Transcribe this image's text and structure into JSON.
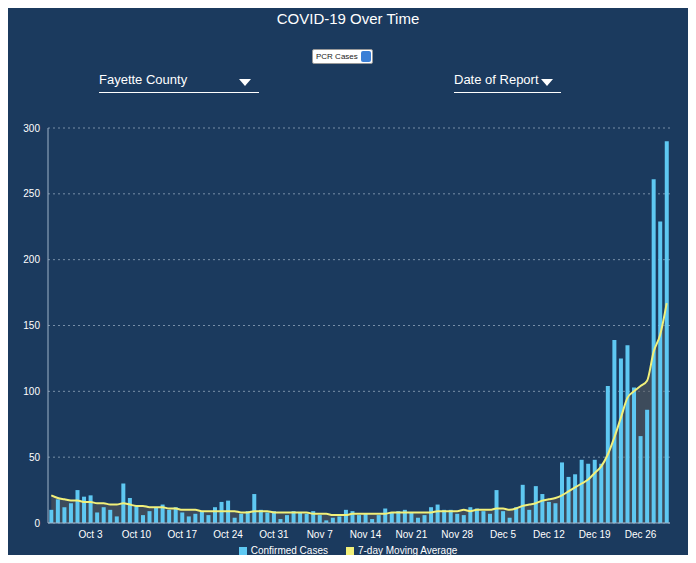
{
  "controls": {
    "metric": "PCR Cases",
    "location": "Fayette County",
    "date_type": "Date of Report"
  },
  "chart_data": {
    "type": "bar",
    "title": "COVID-19 Over Time",
    "categories": [
      null,
      null,
      null,
      null,
      null,
      null,
      "Oct 3",
      null,
      null,
      null,
      null,
      null,
      null,
      "Oct 10",
      null,
      null,
      null,
      null,
      null,
      null,
      "Oct 17",
      null,
      null,
      null,
      null,
      null,
      null,
      "Oct 24",
      null,
      null,
      null,
      null,
      null,
      null,
      "Oct 31",
      null,
      null,
      null,
      null,
      null,
      null,
      "Nov 7",
      null,
      null,
      null,
      null,
      null,
      null,
      "Nov 14",
      null,
      null,
      null,
      null,
      null,
      null,
      "Nov 21",
      null,
      null,
      null,
      null,
      null,
      null,
      "Nov 28",
      null,
      null,
      null,
      null,
      null,
      null,
      "Dec 5",
      null,
      null,
      null,
      null,
      null,
      null,
      "Dec 12",
      null,
      null,
      null,
      null,
      null,
      null,
      "Dec 19",
      null,
      null,
      null,
      null,
      null,
      null,
      "Dec 26",
      null,
      null,
      null,
      null
    ],
    "series": [
      {
        "name": "Confirmed Cases",
        "type": "bar",
        "color": "#5ec8f2",
        "values": [
          10,
          18,
          12,
          15,
          25,
          20,
          21,
          8,
          12,
          10,
          5,
          30,
          19,
          13,
          6,
          9,
          12,
          14,
          10,
          12,
          8,
          5,
          7,
          9,
          6,
          12,
          16,
          17,
          4,
          7,
          9,
          22,
          10,
          8,
          9,
          3,
          6,
          9,
          8,
          7,
          9,
          6,
          2,
          4,
          5,
          10,
          9,
          6,
          7,
          3,
          6,
          11,
          8,
          9,
          10,
          8,
          4,
          6,
          12,
          14,
          10,
          10,
          7,
          6,
          12,
          11,
          9,
          7,
          25,
          9,
          4,
          12,
          29,
          10,
          28,
          22,
          16,
          15,
          46,
          35,
          37,
          48,
          45,
          48,
          45,
          104,
          139,
          125,
          135,
          103,
          66,
          86,
          261,
          229,
          290
        ]
      },
      {
        "name": "7-day Moving Average",
        "type": "line",
        "color": "#f2f07a",
        "values": [
          21,
          19,
          18,
          17,
          17,
          16,
          16,
          15,
          15,
          14,
          14,
          15,
          14,
          13,
          13,
          12,
          12,
          12,
          11,
          11,
          10,
          10,
          10,
          9,
          9,
          9,
          9,
          9,
          9,
          8,
          8,
          9,
          9,
          9,
          8,
          8,
          8,
          8,
          8,
          8,
          7,
          7,
          7,
          6,
          6,
          6,
          7,
          7,
          7,
          7,
          7,
          7,
          8,
          8,
          8,
          8,
          8,
          8,
          8,
          9,
          9,
          9,
          9,
          10,
          9,
          10,
          10,
          10,
          11,
          11,
          10,
          11,
          13,
          14,
          15,
          17,
          18,
          19,
          21,
          24,
          27,
          30,
          33,
          38,
          43,
          52,
          65,
          80,
          95,
          100,
          104,
          108,
          130,
          143,
          167
        ]
      }
    ],
    "ylim": [
      0,
      300
    ],
    "yticks": [
      0,
      50,
      100,
      150,
      200,
      250,
      300
    ],
    "grid": true,
    "legend": "bottom"
  }
}
